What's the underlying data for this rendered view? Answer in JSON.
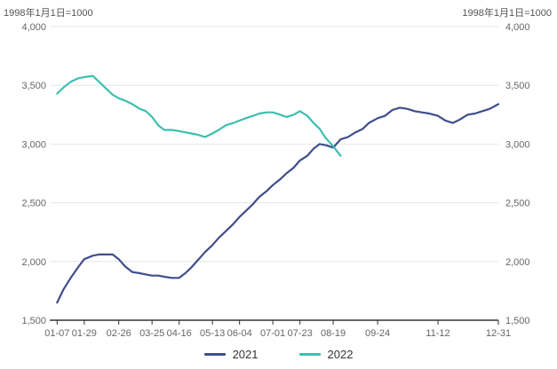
{
  "chart_data": {
    "type": "line",
    "unit_left": "1998年1月1日=1000",
    "unit_right": "1998年1月1日=1000",
    "y_ticks": [
      "1,500",
      "2,000",
      "2,500",
      "3,000",
      "3,500",
      "4,000"
    ],
    "ylim": [
      1500,
      4000
    ],
    "x_tick_labels": [
      "01-07",
      "01-29",
      "02-26",
      "03-25",
      "04-16",
      "05-13",
      "06-04",
      "07-01",
      "07-23",
      "08-19",
      "09-24",
      "11-12",
      "12-31"
    ],
    "x_tick_days": [
      7,
      29,
      57,
      84,
      106,
      133,
      155,
      182,
      204,
      231,
      267,
      316,
      365
    ],
    "xlim": [
      1,
      365
    ],
    "grid": true,
    "legend_position": "bottom",
    "series": [
      {
        "name": "2021",
        "color": "#3f4e8b",
        "x": [
          7,
          12,
          18,
          24,
          29,
          36,
          41,
          47,
          52,
          57,
          62,
          68,
          74,
          79,
          84,
          89,
          94,
          100,
          106,
          111,
          116,
          121,
          127,
          133,
          138,
          144,
          150,
          155,
          160,
          166,
          171,
          177,
          182,
          188,
          193,
          199,
          204,
          210,
          215,
          220,
          225,
          231,
          237,
          243,
          249,
          255,
          260,
          267,
          273,
          279,
          285,
          291,
          297,
          303,
          309,
          316,
          322,
          328,
          334,
          340,
          346,
          352,
          358,
          365
        ],
        "values": [
          1650,
          1760,
          1860,
          1950,
          2020,
          2050,
          2060,
          2060,
          2060,
          2020,
          1960,
          1910,
          1900,
          1890,
          1880,
          1880,
          1870,
          1860,
          1860,
          1900,
          1950,
          2010,
          2080,
          2140,
          2200,
          2260,
          2320,
          2380,
          2430,
          2490,
          2550,
          2600,
          2650,
          2700,
          2750,
          2800,
          2860,
          2900,
          2960,
          3000,
          2990,
          2970,
          3040,
          3060,
          3100,
          3130,
          3180,
          3220,
          3240,
          3290,
          3310,
          3300,
          3280,
          3270,
          3260,
          3240,
          3200,
          3180,
          3210,
          3250,
          3260,
          3280,
          3300,
          3340
        ]
      },
      {
        "name": "2022",
        "color": "#3dbfb0",
        "x": [
          7,
          12,
          18,
          24,
          29,
          36,
          41,
          47,
          52,
          57,
          62,
          68,
          74,
          79,
          84,
          89,
          94,
          100,
          106,
          111,
          116,
          121,
          127,
          133,
          138,
          144,
          150,
          155,
          160,
          166,
          171,
          177,
          182,
          188,
          193,
          199,
          204,
          210,
          215,
          220,
          225,
          231,
          237
        ],
        "values": [
          3430,
          3480,
          3530,
          3560,
          3570,
          3580,
          3530,
          3470,
          3420,
          3390,
          3370,
          3340,
          3300,
          3280,
          3230,
          3160,
          3120,
          3120,
          3110,
          3100,
          3090,
          3080,
          3060,
          3090,
          3120,
          3160,
          3180,
          3200,
          3220,
          3240,
          3260,
          3270,
          3270,
          3250,
          3230,
          3250,
          3280,
          3240,
          3180,
          3130,
          3050,
          2980,
          2900
        ]
      }
    ]
  }
}
